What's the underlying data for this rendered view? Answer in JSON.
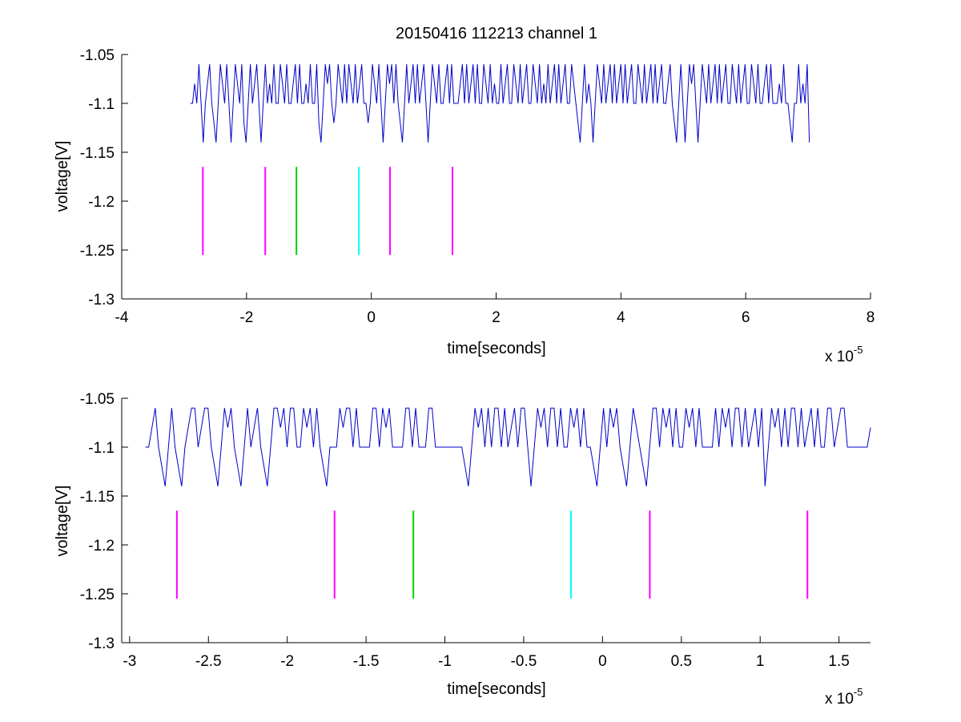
{
  "title": "20150416 112213 channel 1",
  "colors": {
    "signal": "#0000c8",
    "marker_magenta": "#ff00ff",
    "marker_green": "#00d000",
    "marker_cyan": "#00ffff",
    "axis": "#000000"
  },
  "chart_data": [
    {
      "type": "line",
      "title": "20150416 112213 channel 1",
      "xlabel": "time[seconds]",
      "ylabel": "voltage[V]",
      "x_multiplier_label": "x 10",
      "x_multiplier_exponent": "-5",
      "xlim": [
        -4,
        8
      ],
      "ylim": [
        -1.3,
        -1.05
      ],
      "xticks": [
        -4,
        -2,
        0,
        2,
        4,
        6,
        8
      ],
      "xtick_labels": [
        "-4",
        "-2",
        "0",
        "2",
        "4",
        "6",
        "8"
      ],
      "yticks": [
        -1.3,
        -1.25,
        -1.2,
        -1.15,
        -1.1,
        -1.05
      ],
      "ytick_labels": [
        "-1.3",
        "-1.25",
        "-1.2",
        "-1.15",
        "-1.1",
        "-1.05"
      ],
      "grid": false,
      "series": [
        {
          "x_start": -2.9,
          "x_end": 7.02,
          "baseline": -1.1,
          "levels": [
            -1.14,
            -1.12,
            -1.1,
            -1.08,
            -1.06
          ],
          "values": [
            -1.1,
            -1.1,
            -1.08,
            -1.1,
            -1.06,
            -1.1,
            -1.14,
            -1.1,
            -1.08,
            -1.06,
            -1.1,
            -1.12,
            -1.14,
            -1.1,
            -1.06,
            -1.08,
            -1.1,
            -1.06,
            -1.1,
            -1.14,
            -1.1,
            -1.06,
            -1.08,
            -1.1,
            -1.06,
            -1.12,
            -1.14,
            -1.1,
            -1.06,
            -1.1,
            -1.08,
            -1.06,
            -1.1,
            -1.14,
            -1.1,
            -1.06,
            -1.1,
            -1.08,
            -1.1,
            -1.06,
            -1.1,
            -1.1,
            -1.06,
            -1.08,
            -1.1,
            -1.06,
            -1.1,
            -1.1,
            -1.08,
            -1.06,
            -1.1,
            -1.06,
            -1.1,
            -1.1,
            -1.08,
            -1.1,
            -1.06,
            -1.1,
            -1.1,
            -1.06,
            -1.12,
            -1.14,
            -1.1,
            -1.06,
            -1.08,
            -1.06,
            -1.1,
            -1.12,
            -1.1,
            -1.06,
            -1.08,
            -1.1,
            -1.06,
            -1.1,
            -1.06,
            -1.08,
            -1.1,
            -1.06,
            -1.1,
            -1.08,
            -1.06,
            -1.1,
            -1.1,
            -1.12,
            -1.1,
            -1.06,
            -1.08,
            -1.1,
            -1.06,
            -1.1,
            -1.14,
            -1.1,
            -1.06,
            -1.08,
            -1.06,
            -1.1,
            -1.06,
            -1.1,
            -1.12,
            -1.14,
            -1.1,
            -1.06,
            -1.1,
            -1.08,
            -1.06,
            -1.1,
            -1.06,
            -1.1,
            -1.08,
            -1.06,
            -1.1,
            -1.14,
            -1.1,
            -1.06,
            -1.08,
            -1.1,
            -1.06,
            -1.1,
            -1.1,
            -1.08,
            -1.06,
            -1.1,
            -1.06,
            -1.1,
            -1.1,
            -1.1,
            -1.08,
            -1.06,
            -1.1,
            -1.06,
            -1.1,
            -1.08,
            -1.06,
            -1.1,
            -1.06,
            -1.1,
            -1.1,
            -1.06,
            -1.08,
            -1.1,
            -1.06,
            -1.1,
            -1.08,
            -1.1,
            -1.1,
            -1.06,
            -1.1,
            -1.08,
            -1.06,
            -1.1,
            -1.1,
            -1.06,
            -1.08,
            -1.1,
            -1.06,
            -1.1,
            -1.08,
            -1.06,
            -1.1,
            -1.1,
            -1.06,
            -1.08,
            -1.1,
            -1.06,
            -1.1,
            -1.08,
            -1.1,
            -1.06,
            -1.1,
            -1.08,
            -1.06,
            -1.1,
            -1.06,
            -1.1,
            -1.08,
            -1.06,
            -1.1,
            -1.1,
            -1.06,
            -1.08,
            -1.1,
            -1.12,
            -1.14,
            -1.1,
            -1.06,
            -1.1,
            -1.08,
            -1.1,
            -1.14,
            -1.1,
            -1.06,
            -1.08,
            -1.1,
            -1.06,
            -1.1,
            -1.08,
            -1.06,
            -1.1,
            -1.06,
            -1.1,
            -1.08,
            -1.06,
            -1.1,
            -1.06,
            -1.1,
            -1.08,
            -1.06,
            -1.1,
            -1.1,
            -1.06,
            -1.08,
            -1.1,
            -1.06,
            -1.1,
            -1.08,
            -1.06,
            -1.1,
            -1.06,
            -1.1,
            -1.08,
            -1.06,
            -1.1,
            -1.1,
            -1.08,
            -1.06,
            -1.1,
            -1.12,
            -1.14,
            -1.1,
            -1.06,
            -1.1,
            -1.14,
            -1.1,
            -1.06,
            -1.08,
            -1.06,
            -1.1,
            -1.14,
            -1.1,
            -1.06,
            -1.08,
            -1.1,
            -1.06,
            -1.1,
            -1.08,
            -1.06,
            -1.1,
            -1.06,
            -1.1,
            -1.08,
            -1.06,
            -1.1,
            -1.1,
            -1.06,
            -1.08,
            -1.1,
            -1.06,
            -1.1,
            -1.08,
            -1.06,
            -1.1,
            -1.1,
            -1.06,
            -1.08,
            -1.1,
            -1.06,
            -1.1,
            -1.1,
            -1.08,
            -1.06,
            -1.1,
            -1.06,
            -1.1,
            -1.1,
            -1.1,
            -1.08,
            -1.1,
            -1.06,
            -1.1,
            -1.1,
            -1.12,
            -1.14,
            -1.1,
            -1.1,
            -1.06,
            -1.1,
            -1.08,
            -1.1,
            -1.06,
            -1.14
          ]
        }
      ],
      "markers": [
        {
          "x": -2.7,
          "y_low": -1.255,
          "y_high": -1.165,
          "color": "#ff00ff"
        },
        {
          "x": -1.7,
          "y_low": -1.255,
          "y_high": -1.165,
          "color": "#ff00ff"
        },
        {
          "x": -1.2,
          "y_low": -1.255,
          "y_high": -1.165,
          "color": "#00d000"
        },
        {
          "x": -0.2,
          "y_low": -1.255,
          "y_high": -1.165,
          "color": "#00ffff"
        },
        {
          "x": 0.3,
          "y_low": -1.255,
          "y_high": -1.165,
          "color": "#ff00ff"
        },
        {
          "x": 1.3,
          "y_low": -1.255,
          "y_high": -1.165,
          "color": "#ff00ff"
        }
      ]
    },
    {
      "type": "line",
      "title": "",
      "xlabel": "time[seconds]",
      "ylabel": "voltage[V]",
      "x_multiplier_label": "x 10",
      "x_multiplier_exponent": "-5",
      "xlim": [
        -3.05,
        1.7
      ],
      "ylim": [
        -1.3,
        -1.05
      ],
      "xticks": [
        -3,
        -2.5,
        -2,
        -1.5,
        -1,
        -0.5,
        0,
        0.5,
        1,
        1.5
      ],
      "xtick_labels": [
        "-3",
        "-2.5",
        "-2",
        "-1.5",
        "-1",
        "-0.5",
        "0",
        "0.5",
        "1",
        "1.5"
      ],
      "yticks": [
        -1.3,
        -1.25,
        -1.2,
        -1.15,
        -1.1,
        -1.05
      ],
      "ytick_labels": [
        "-1.3",
        "-1.25",
        "-1.2",
        "-1.15",
        "-1.1",
        "-1.05"
      ],
      "grid": false,
      "series": [
        {
          "x_start": -2.9,
          "x_end": 1.7,
          "baseline": -1.1,
          "levels": [
            -1.14,
            -1.12,
            -1.1,
            -1.08,
            -1.06
          ],
          "values": [
            -1.1,
            -1.1,
            -1.08,
            -1.06,
            -1.1,
            -1.12,
            -1.14,
            -1.1,
            -1.06,
            -1.1,
            -1.12,
            -1.14,
            -1.1,
            -1.08,
            -1.06,
            -1.06,
            -1.1,
            -1.08,
            -1.06,
            -1.06,
            -1.1,
            -1.12,
            -1.14,
            -1.1,
            -1.06,
            -1.08,
            -1.06,
            -1.1,
            -1.12,
            -1.14,
            -1.1,
            -1.06,
            -1.1,
            -1.08,
            -1.06,
            -1.1,
            -1.12,
            -1.14,
            -1.1,
            -1.06,
            -1.06,
            -1.08,
            -1.06,
            -1.1,
            -1.06,
            -1.06,
            -1.1,
            -1.1,
            -1.06,
            -1.08,
            -1.06,
            -1.1,
            -1.06,
            -1.1,
            -1.12,
            -1.14,
            -1.1,
            -1.1,
            -1.1,
            -1.06,
            -1.08,
            -1.06,
            -1.06,
            -1.1,
            -1.06,
            -1.1,
            -1.1,
            -1.1,
            -1.1,
            -1.06,
            -1.06,
            -1.1,
            -1.06,
            -1.08,
            -1.06,
            -1.1,
            -1.1,
            -1.1,
            -1.1,
            -1.06,
            -1.06,
            -1.1,
            -1.06,
            -1.1,
            -1.1,
            -1.1,
            -1.06,
            -1.06,
            -1.1,
            -1.1,
            -1.1,
            -1.1,
            -1.1,
            -1.1,
            -1.1,
            -1.1,
            -1.1,
            -1.12,
            -1.14,
            -1.1,
            -1.06,
            -1.08,
            -1.06,
            -1.1,
            -1.06,
            -1.1,
            -1.06,
            -1.06,
            -1.1,
            -1.06,
            -1.1,
            -1.08,
            -1.06,
            -1.1,
            -1.06,
            -1.06,
            -1.1,
            -1.14,
            -1.1,
            -1.06,
            -1.08,
            -1.06,
            -1.1,
            -1.06,
            -1.06,
            -1.1,
            -1.06,
            -1.1,
            -1.1,
            -1.06,
            -1.08,
            -1.06,
            -1.1,
            -1.06,
            -1.1,
            -1.1,
            -1.12,
            -1.14,
            -1.1,
            -1.06,
            -1.1,
            -1.06,
            -1.08,
            -1.06,
            -1.1,
            -1.12,
            -1.14,
            -1.1,
            -1.06,
            -1.08,
            -1.1,
            -1.12,
            -1.14,
            -1.1,
            -1.06,
            -1.06,
            -1.1,
            -1.06,
            -1.08,
            -1.06,
            -1.1,
            -1.06,
            -1.1,
            -1.1,
            -1.06,
            -1.08,
            -1.06,
            -1.1,
            -1.06,
            -1.1,
            -1.1,
            -1.1,
            -1.1,
            -1.06,
            -1.1,
            -1.06,
            -1.08,
            -1.06,
            -1.1,
            -1.06,
            -1.06,
            -1.1,
            -1.06,
            -1.1,
            -1.08,
            -1.06,
            -1.1,
            -1.06,
            -1.14,
            -1.1,
            -1.06,
            -1.08,
            -1.06,
            -1.1,
            -1.06,
            -1.1,
            -1.06,
            -1.06,
            -1.1,
            -1.06,
            -1.1,
            -1.08,
            -1.06,
            -1.1,
            -1.06,
            -1.1,
            -1.1,
            -1.06,
            -1.06,
            -1.1,
            -1.08,
            -1.06,
            -1.06,
            -1.1,
            -1.1,
            -1.1,
            -1.1,
            -1.1,
            -1.1,
            -1.1,
            -1.08
          ]
        }
      ],
      "markers": [
        {
          "x": -2.7,
          "y_low": -1.255,
          "y_high": -1.165,
          "color": "#ff00ff"
        },
        {
          "x": -1.7,
          "y_low": -1.255,
          "y_high": -1.165,
          "color": "#ff00ff"
        },
        {
          "x": -1.2,
          "y_low": -1.255,
          "y_high": -1.165,
          "color": "#00d000"
        },
        {
          "x": -0.2,
          "y_low": -1.255,
          "y_high": -1.165,
          "color": "#00ffff"
        },
        {
          "x": 0.3,
          "y_low": -1.255,
          "y_high": -1.165,
          "color": "#ff00ff"
        },
        {
          "x": 1.3,
          "y_low": -1.255,
          "y_high": -1.165,
          "color": "#ff00ff"
        }
      ]
    }
  ]
}
